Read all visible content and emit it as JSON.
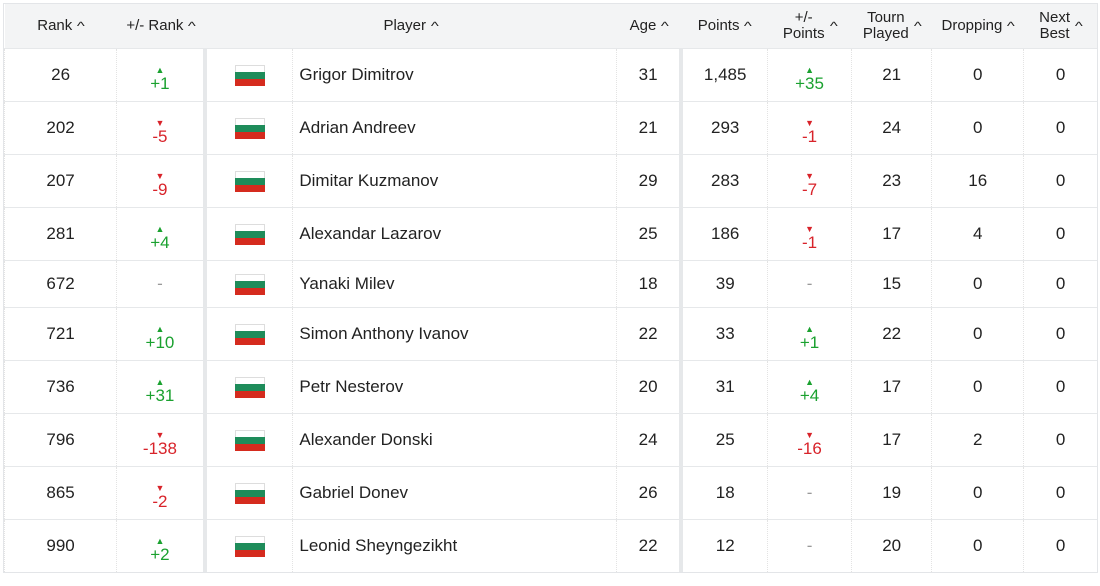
{
  "columns": [
    "Rank",
    "+/- Rank",
    "Player",
    "Age",
    "Points",
    "+/- Points",
    "Tourn Played",
    "Dropping",
    "Next Best"
  ],
  "column_headers": {
    "rank": "Rank",
    "rank_change": "+/- Rank",
    "player": "Player",
    "age": "Age",
    "points": "Points",
    "points_change_1": "+/-",
    "points_change_2": "Points",
    "tourn_1": "Tourn",
    "tourn_2": "Played",
    "dropping": "Dropping",
    "next_1": "Next",
    "next_2": "Best"
  },
  "colors": {
    "up": "#1aa12f",
    "down": "#d8232a",
    "flag_white": "#ffffff",
    "flag_green": "#1e8c5a",
    "flag_red": "#d52b1e"
  },
  "rows": [
    {
      "rank": "26",
      "rank_change": "+1",
      "rank_dir": "up",
      "flag": "bulgaria-flag",
      "player": "Grigor Dimitrov",
      "age": "31",
      "points": "1,485",
      "points_change": "+35",
      "points_dir": "up",
      "tourn_played": "21",
      "dropping": "0",
      "next_best": "0"
    },
    {
      "rank": "202",
      "rank_change": "-5",
      "rank_dir": "down",
      "flag": "bulgaria-flag",
      "player": "Adrian Andreev",
      "age": "21",
      "points": "293",
      "points_change": "-1",
      "points_dir": "down",
      "tourn_played": "24",
      "dropping": "0",
      "next_best": "0"
    },
    {
      "rank": "207",
      "rank_change": "-9",
      "rank_dir": "down",
      "flag": "bulgaria-flag",
      "player": "Dimitar Kuzmanov",
      "age": "29",
      "points": "283",
      "points_change": "-7",
      "points_dir": "down",
      "tourn_played": "23",
      "dropping": "16",
      "next_best": "0"
    },
    {
      "rank": "281",
      "rank_change": "+4",
      "rank_dir": "up",
      "flag": "bulgaria-flag",
      "player": "Alexandar Lazarov",
      "age": "25",
      "points": "186",
      "points_change": "-1",
      "points_dir": "down",
      "tourn_played": "17",
      "dropping": "4",
      "next_best": "0"
    },
    {
      "rank": "672",
      "rank_change": "-",
      "rank_dir": "neutral",
      "flag": "bulgaria-flag",
      "player": "Yanaki Milev",
      "age": "18",
      "points": "39",
      "points_change": "-",
      "points_dir": "neutral",
      "tourn_played": "15",
      "dropping": "0",
      "next_best": "0"
    },
    {
      "rank": "721",
      "rank_change": "+10",
      "rank_dir": "up",
      "flag": "bulgaria-flag",
      "player": "Simon Anthony Ivanov",
      "age": "22",
      "points": "33",
      "points_change": "+1",
      "points_dir": "up",
      "tourn_played": "22",
      "dropping": "0",
      "next_best": "0"
    },
    {
      "rank": "736",
      "rank_change": "+31",
      "rank_dir": "up",
      "flag": "bulgaria-flag",
      "player": "Petr Nesterov",
      "age": "20",
      "points": "31",
      "points_change": "+4",
      "points_dir": "up",
      "tourn_played": "17",
      "dropping": "0",
      "next_best": "0"
    },
    {
      "rank": "796",
      "rank_change": "-138",
      "rank_dir": "down",
      "flag": "bulgaria-flag",
      "player": "Alexander Donski",
      "age": "24",
      "points": "25",
      "points_change": "-16",
      "points_dir": "down",
      "tourn_played": "17",
      "dropping": "2",
      "next_best": "0"
    },
    {
      "rank": "865",
      "rank_change": "-2",
      "rank_dir": "down",
      "flag": "bulgaria-flag",
      "player": "Gabriel Donev",
      "age": "26",
      "points": "18",
      "points_change": "-",
      "points_dir": "neutral",
      "tourn_played": "19",
      "dropping": "0",
      "next_best": "0"
    },
    {
      "rank": "990",
      "rank_change": "+2",
      "rank_dir": "up",
      "flag": "bulgaria-flag",
      "player": "Leonid Sheyngezikht",
      "age": "22",
      "points": "12",
      "points_change": "-",
      "points_dir": "neutral",
      "tourn_played": "20",
      "dropping": "0",
      "next_best": "0"
    }
  ]
}
